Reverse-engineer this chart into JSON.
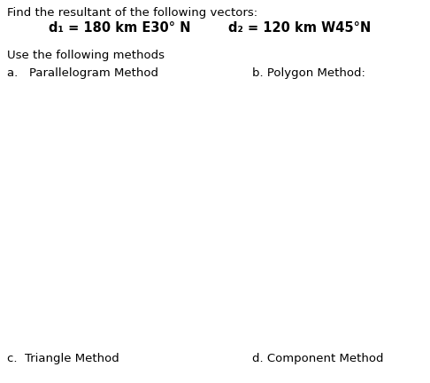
{
  "line1": "Find the resultant of the following vectors:",
  "line2_left": "d₁ = 180 km E30° N",
  "line2_right": "d₂ = 120 km W45°N",
  "line3": "Use the following methods",
  "item_a": "a.   Parallelogram Method",
  "item_b": "b. Polygon Method:",
  "item_c": "c.  Triangle Method",
  "item_d": "d. Component Method",
  "bg_color": "#ffffff",
  "text_color": "#000000",
  "fig_width": 4.86,
  "fig_height": 4.32,
  "dpi": 100
}
